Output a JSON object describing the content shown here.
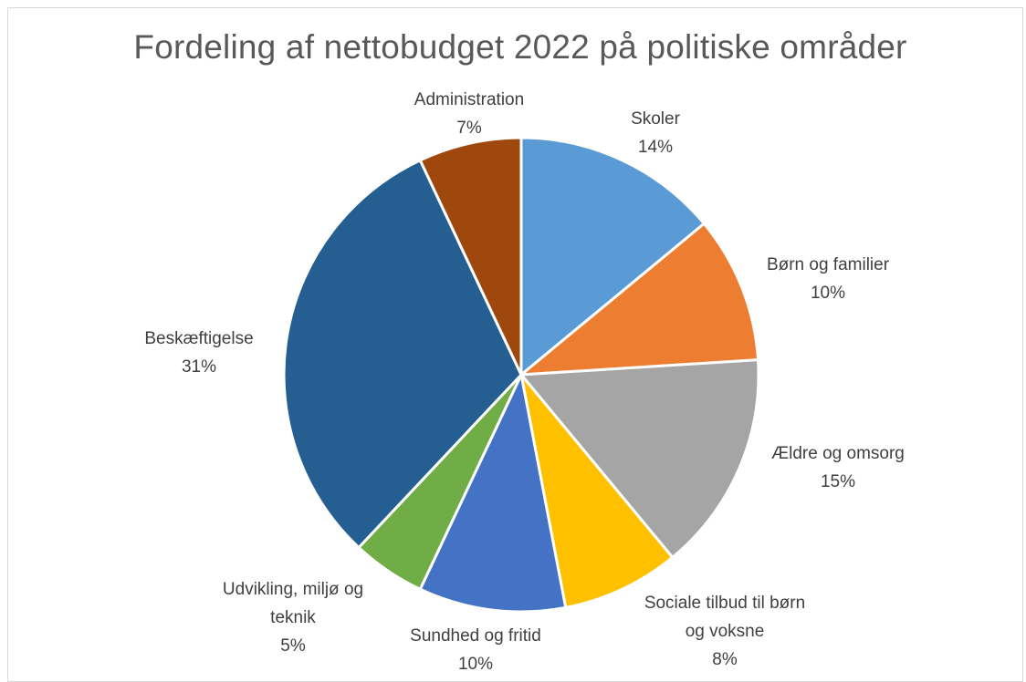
{
  "chart_data": {
    "type": "pie",
    "title": "Fordeling af nettobudget 2022 på politiske områder",
    "slices": [
      {
        "lines": [
          "Skoler"
        ],
        "label": "Skoler",
        "value": 14,
        "percent_label": "14%",
        "color": "#5B9BD5"
      },
      {
        "lines": [
          "Børn og familier"
        ],
        "label": "Børn og familier",
        "value": 10,
        "percent_label": "10%",
        "color": "#ED7D31"
      },
      {
        "lines": [
          "Ældre og omsorg"
        ],
        "label": "Ældre og omsorg",
        "value": 15,
        "percent_label": "15%",
        "color": "#A5A5A5"
      },
      {
        "lines": [
          "Sociale tilbud til børn",
          "og voksne"
        ],
        "label": "Sociale tilbud til børn og voksne",
        "value": 8,
        "percent_label": "8%",
        "color": "#FFC000"
      },
      {
        "lines": [
          "Sundhed og fritid"
        ],
        "label": "Sundhed og fritid",
        "value": 10,
        "percent_label": "10%",
        "color": "#4472C4"
      },
      {
        "lines": [
          "Udvikling, miljø og",
          "teknik"
        ],
        "label": "Udvikling, miljø og teknik",
        "value": 5,
        "percent_label": "5%",
        "color": "#70AD47"
      },
      {
        "lines": [
          "Beskæftigelse"
        ],
        "label": "Beskæftigelse",
        "value": 31,
        "percent_label": "31%",
        "color": "#255E91"
      },
      {
        "lines": [
          "Administration"
        ],
        "label": "Administration",
        "value": 7,
        "percent_label": "7%",
        "color": "#9E480E"
      }
    ]
  }
}
